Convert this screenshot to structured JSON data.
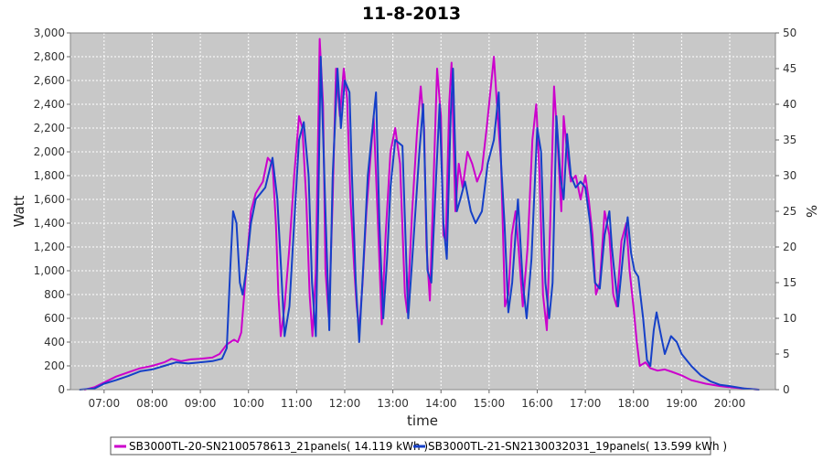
{
  "chart_data": {
    "type": "line",
    "title": "11-8-2013",
    "xlabel": "time",
    "ylabel": "Watt",
    "y2label": "%",
    "xlim": [
      6.3,
      20.95
    ],
    "ylim": [
      0,
      3000
    ],
    "y2lim": [
      0,
      50
    ],
    "x_ticks": [
      {
        "value": 7,
        "label": "07:00"
      },
      {
        "value": 8,
        "label": "08:00"
      },
      {
        "value": 9,
        "label": "09:00"
      },
      {
        "value": 10,
        "label": "10:00"
      },
      {
        "value": 11,
        "label": "11:00"
      },
      {
        "value": 12,
        "label": "12:00"
      },
      {
        "value": 13,
        "label": "13:00"
      },
      {
        "value": 14,
        "label": "14:00"
      },
      {
        "value": 15,
        "label": "15:00"
      },
      {
        "value": 16,
        "label": "16:00"
      },
      {
        "value": 17,
        "label": "17:00"
      },
      {
        "value": 18,
        "label": "18:00"
      },
      {
        "value": 19,
        "label": "19:00"
      },
      {
        "value": 20,
        "label": "20:00"
      }
    ],
    "y_ticks": [
      {
        "value": 0,
        "label": "0"
      },
      {
        "value": 200,
        "label": "200"
      },
      {
        "value": 400,
        "label": "400"
      },
      {
        "value": 600,
        "label": "600"
      },
      {
        "value": 800,
        "label": "800"
      },
      {
        "value": 1000,
        "label": "1,000"
      },
      {
        "value": 1200,
        "label": "1,200"
      },
      {
        "value": 1400,
        "label": "1,400"
      },
      {
        "value": 1600,
        "label": "1,600"
      },
      {
        "value": 1800,
        "label": "1,800"
      },
      {
        "value": 2000,
        "label": "2,000"
      },
      {
        "value": 2200,
        "label": "2,200"
      },
      {
        "value": 2400,
        "label": "2,400"
      },
      {
        "value": 2600,
        "label": "2,600"
      },
      {
        "value": 2800,
        "label": "2,800"
      },
      {
        "value": 3000,
        "label": "3,000"
      }
    ],
    "y2_ticks": [
      {
        "value": 0,
        "label": "0"
      },
      {
        "value": 5,
        "label": "5"
      },
      {
        "value": 10,
        "label": "10"
      },
      {
        "value": 15,
        "label": "15"
      },
      {
        "value": 20,
        "label": "20"
      },
      {
        "value": 25,
        "label": "25"
      },
      {
        "value": 30,
        "label": "30"
      },
      {
        "value": 35,
        "label": "35"
      },
      {
        "value": 40,
        "label": "40"
      },
      {
        "value": 45,
        "label": "45"
      },
      {
        "value": 50,
        "label": "50"
      }
    ],
    "grid": true,
    "legend_position": "bottom",
    "colors": {
      "background": "#c8c8c8",
      "grid": "#ffffff"
    },
    "series": [
      {
        "name": "SB3000TL-20-SN2100578613_21panels( 14.119 kWh )",
        "color": "#cc00cc",
        "points": [
          [
            6.6,
            0
          ],
          [
            6.8,
            20
          ],
          [
            7.0,
            60
          ],
          [
            7.25,
            110
          ],
          [
            7.5,
            145
          ],
          [
            7.75,
            180
          ],
          [
            8.0,
            200
          ],
          [
            8.25,
            230
          ],
          [
            8.4,
            260
          ],
          [
            8.6,
            240
          ],
          [
            8.8,
            255
          ],
          [
            9.0,
            260
          ],
          [
            9.25,
            270
          ],
          [
            9.4,
            300
          ],
          [
            9.55,
            380
          ],
          [
            9.7,
            420
          ],
          [
            9.78,
            400
          ],
          [
            9.85,
            480
          ],
          [
            9.95,
            1000
          ],
          [
            10.05,
            1500
          ],
          [
            10.15,
            1650
          ],
          [
            10.3,
            1750
          ],
          [
            10.4,
            1950
          ],
          [
            10.5,
            1900
          ],
          [
            10.57,
            1400
          ],
          [
            10.62,
            800
          ],
          [
            10.67,
            450
          ],
          [
            10.75,
            700
          ],
          [
            10.85,
            1200
          ],
          [
            10.95,
            1800
          ],
          [
            11.05,
            2300
          ],
          [
            11.12,
            2200
          ],
          [
            11.2,
            1600
          ],
          [
            11.27,
            800
          ],
          [
            11.33,
            450
          ],
          [
            11.4,
            1000
          ],
          [
            11.48,
            2950
          ],
          [
            11.55,
            2400
          ],
          [
            11.6,
            1000
          ],
          [
            11.67,
            600
          ],
          [
            11.75,
            1600
          ],
          [
            11.82,
            2700
          ],
          [
            11.9,
            2300
          ],
          [
            11.98,
            2700
          ],
          [
            12.05,
            2450
          ],
          [
            12.12,
            1600
          ],
          [
            12.2,
            1000
          ],
          [
            12.25,
            700
          ],
          [
            12.3,
            500
          ],
          [
            12.37,
            900
          ],
          [
            12.45,
            1500
          ],
          [
            12.6,
            2300
          ],
          [
            12.68,
            1500
          ],
          [
            12.77,
            550
          ],
          [
            12.85,
            1300
          ],
          [
            12.95,
            2000
          ],
          [
            13.05,
            2200
          ],
          [
            13.15,
            1900
          ],
          [
            13.25,
            800
          ],
          [
            13.3,
            650
          ],
          [
            13.4,
            1500
          ],
          [
            13.5,
            2150
          ],
          [
            13.58,
            2550
          ],
          [
            13.65,
            2200
          ],
          [
            13.7,
            1200
          ],
          [
            13.77,
            750
          ],
          [
            13.85,
            1800
          ],
          [
            13.92,
            2700
          ],
          [
            14.0,
            2300
          ],
          [
            14.05,
            1300
          ],
          [
            14.1,
            1250
          ],
          [
            14.17,
            2400
          ],
          [
            14.22,
            2750
          ],
          [
            14.3,
            1500
          ],
          [
            14.37,
            1900
          ],
          [
            14.45,
            1700
          ],
          [
            14.55,
            2000
          ],
          [
            14.65,
            1900
          ],
          [
            14.75,
            1750
          ],
          [
            14.85,
            1850
          ],
          [
            14.95,
            2200
          ],
          [
            15.05,
            2600
          ],
          [
            15.1,
            2800
          ],
          [
            15.18,
            2300
          ],
          [
            15.25,
            1900
          ],
          [
            15.33,
            700
          ],
          [
            15.4,
            800
          ],
          [
            15.47,
            1300
          ],
          [
            15.55,
            1500
          ],
          [
            15.62,
            1150
          ],
          [
            15.7,
            700
          ],
          [
            15.8,
            1200
          ],
          [
            15.9,
            2100
          ],
          [
            15.98,
            2400
          ],
          [
            16.05,
            1800
          ],
          [
            16.12,
            800
          ],
          [
            16.2,
            500
          ],
          [
            16.27,
            1400
          ],
          [
            16.35,
            2550
          ],
          [
            16.42,
            2100
          ],
          [
            16.5,
            1500
          ],
          [
            16.55,
            2300
          ],
          [
            16.62,
            2000
          ],
          [
            16.7,
            1750
          ],
          [
            16.8,
            1800
          ],
          [
            16.9,
            1600
          ],
          [
            17.0,
            1800
          ],
          [
            17.07,
            1600
          ],
          [
            17.15,
            1300
          ],
          [
            17.22,
            800
          ],
          [
            17.3,
            900
          ],
          [
            17.4,
            1500
          ],
          [
            17.5,
            1300
          ],
          [
            17.58,
            800
          ],
          [
            17.65,
            700
          ],
          [
            17.75,
            1250
          ],
          [
            17.85,
            1400
          ],
          [
            17.92,
            1000
          ],
          [
            18.0,
            700
          ],
          [
            18.07,
            400
          ],
          [
            18.13,
            200
          ],
          [
            18.25,
            230
          ],
          [
            18.35,
            180
          ],
          [
            18.5,
            160
          ],
          [
            18.65,
            170
          ],
          [
            18.8,
            150
          ],
          [
            19.0,
            120
          ],
          [
            19.2,
            80
          ],
          [
            19.5,
            50
          ],
          [
            19.8,
            30
          ],
          [
            20.0,
            20
          ],
          [
            20.3,
            10
          ],
          [
            20.6,
            0
          ]
        ]
      },
      {
        "name": "SB3000TL-21-SN2130032031_19panels( 13.599 kWh )",
        "color": "#1540c8",
        "points": [
          [
            6.5,
            0
          ],
          [
            6.8,
            10
          ],
          [
            7.0,
            50
          ],
          [
            7.25,
            80
          ],
          [
            7.5,
            115
          ],
          [
            7.75,
            155
          ],
          [
            8.0,
            170
          ],
          [
            8.25,
            200
          ],
          [
            8.5,
            230
          ],
          [
            8.75,
            220
          ],
          [
            9.0,
            230
          ],
          [
            9.25,
            240
          ],
          [
            9.45,
            260
          ],
          [
            9.55,
            350
          ],
          [
            9.62,
            1000
          ],
          [
            9.68,
            1500
          ],
          [
            9.75,
            1400
          ],
          [
            9.82,
            900
          ],
          [
            9.88,
            800
          ],
          [
            9.95,
            1000
          ],
          [
            10.05,
            1400
          ],
          [
            10.15,
            1600
          ],
          [
            10.25,
            1650
          ],
          [
            10.35,
            1700
          ],
          [
            10.5,
            1950
          ],
          [
            10.6,
            1600
          ],
          [
            10.68,
            1000
          ],
          [
            10.75,
            450
          ],
          [
            10.85,
            700
          ],
          [
            10.95,
            1400
          ],
          [
            11.05,
            2100
          ],
          [
            11.15,
            2250
          ],
          [
            11.25,
            1800
          ],
          [
            11.32,
            900
          ],
          [
            11.4,
            450
          ],
          [
            11.45,
            1500
          ],
          [
            11.5,
            2800
          ],
          [
            11.6,
            1500
          ],
          [
            11.68,
            500
          ],
          [
            11.75,
            1800
          ],
          [
            11.85,
            2700
          ],
          [
            11.92,
            2200
          ],
          [
            12.0,
            2600
          ],
          [
            12.1,
            2500
          ],
          [
            12.15,
            1800
          ],
          [
            12.23,
            900
          ],
          [
            12.3,
            400
          ],
          [
            12.38,
            1000
          ],
          [
            12.48,
            1800
          ],
          [
            12.65,
            2500
          ],
          [
            12.72,
            1400
          ],
          [
            12.8,
            600
          ],
          [
            12.88,
            1100
          ],
          [
            12.95,
            1700
          ],
          [
            13.05,
            2100
          ],
          [
            13.2,
            2050
          ],
          [
            13.32,
            600
          ],
          [
            13.42,
            1200
          ],
          [
            13.55,
            2000
          ],
          [
            13.63,
            2400
          ],
          [
            13.72,
            1000
          ],
          [
            13.8,
            900
          ],
          [
            13.9,
            1800
          ],
          [
            13.97,
            2400
          ],
          [
            14.05,
            1400
          ],
          [
            14.12,
            1100
          ],
          [
            14.2,
            2300
          ],
          [
            14.25,
            2700
          ],
          [
            14.33,
            1500
          ],
          [
            14.4,
            1600
          ],
          [
            14.5,
            1750
          ],
          [
            14.62,
            1500
          ],
          [
            14.72,
            1400
          ],
          [
            14.85,
            1500
          ],
          [
            14.97,
            1900
          ],
          [
            15.1,
            2100
          ],
          [
            15.2,
            2500
          ],
          [
            15.25,
            1900
          ],
          [
            15.32,
            1400
          ],
          [
            15.4,
            650
          ],
          [
            15.48,
            900
          ],
          [
            15.6,
            1600
          ],
          [
            15.7,
            900
          ],
          [
            15.78,
            600
          ],
          [
            15.88,
            1100
          ],
          [
            16.0,
            2200
          ],
          [
            16.08,
            2000
          ],
          [
            16.17,
            900
          ],
          [
            16.25,
            600
          ],
          [
            16.32,
            900
          ],
          [
            16.4,
            2300
          ],
          [
            16.48,
            1800
          ],
          [
            16.55,
            1600
          ],
          [
            16.62,
            2150
          ],
          [
            16.7,
            1800
          ],
          [
            16.8,
            1700
          ],
          [
            16.9,
            1750
          ],
          [
            17.0,
            1700
          ],
          [
            17.1,
            1400
          ],
          [
            17.2,
            900
          ],
          [
            17.3,
            850
          ],
          [
            17.4,
            1300
          ],
          [
            17.5,
            1500
          ],
          [
            17.55,
            1200
          ],
          [
            17.6,
            1000
          ],
          [
            17.68,
            700
          ],
          [
            17.8,
            1200
          ],
          [
            17.88,
            1450
          ],
          [
            17.95,
            1150
          ],
          [
            18.02,
            1000
          ],
          [
            18.1,
            950
          ],
          [
            18.2,
            600
          ],
          [
            18.28,
            250
          ],
          [
            18.35,
            200
          ],
          [
            18.42,
            500
          ],
          [
            18.48,
            650
          ],
          [
            18.55,
            500
          ],
          [
            18.65,
            300
          ],
          [
            18.78,
            450
          ],
          [
            18.9,
            400
          ],
          [
            19.0,
            300
          ],
          [
            19.2,
            200
          ],
          [
            19.4,
            120
          ],
          [
            19.6,
            70
          ],
          [
            19.8,
            40
          ],
          [
            20.0,
            30
          ],
          [
            20.3,
            10
          ],
          [
            20.6,
            0
          ]
        ]
      }
    ]
  }
}
